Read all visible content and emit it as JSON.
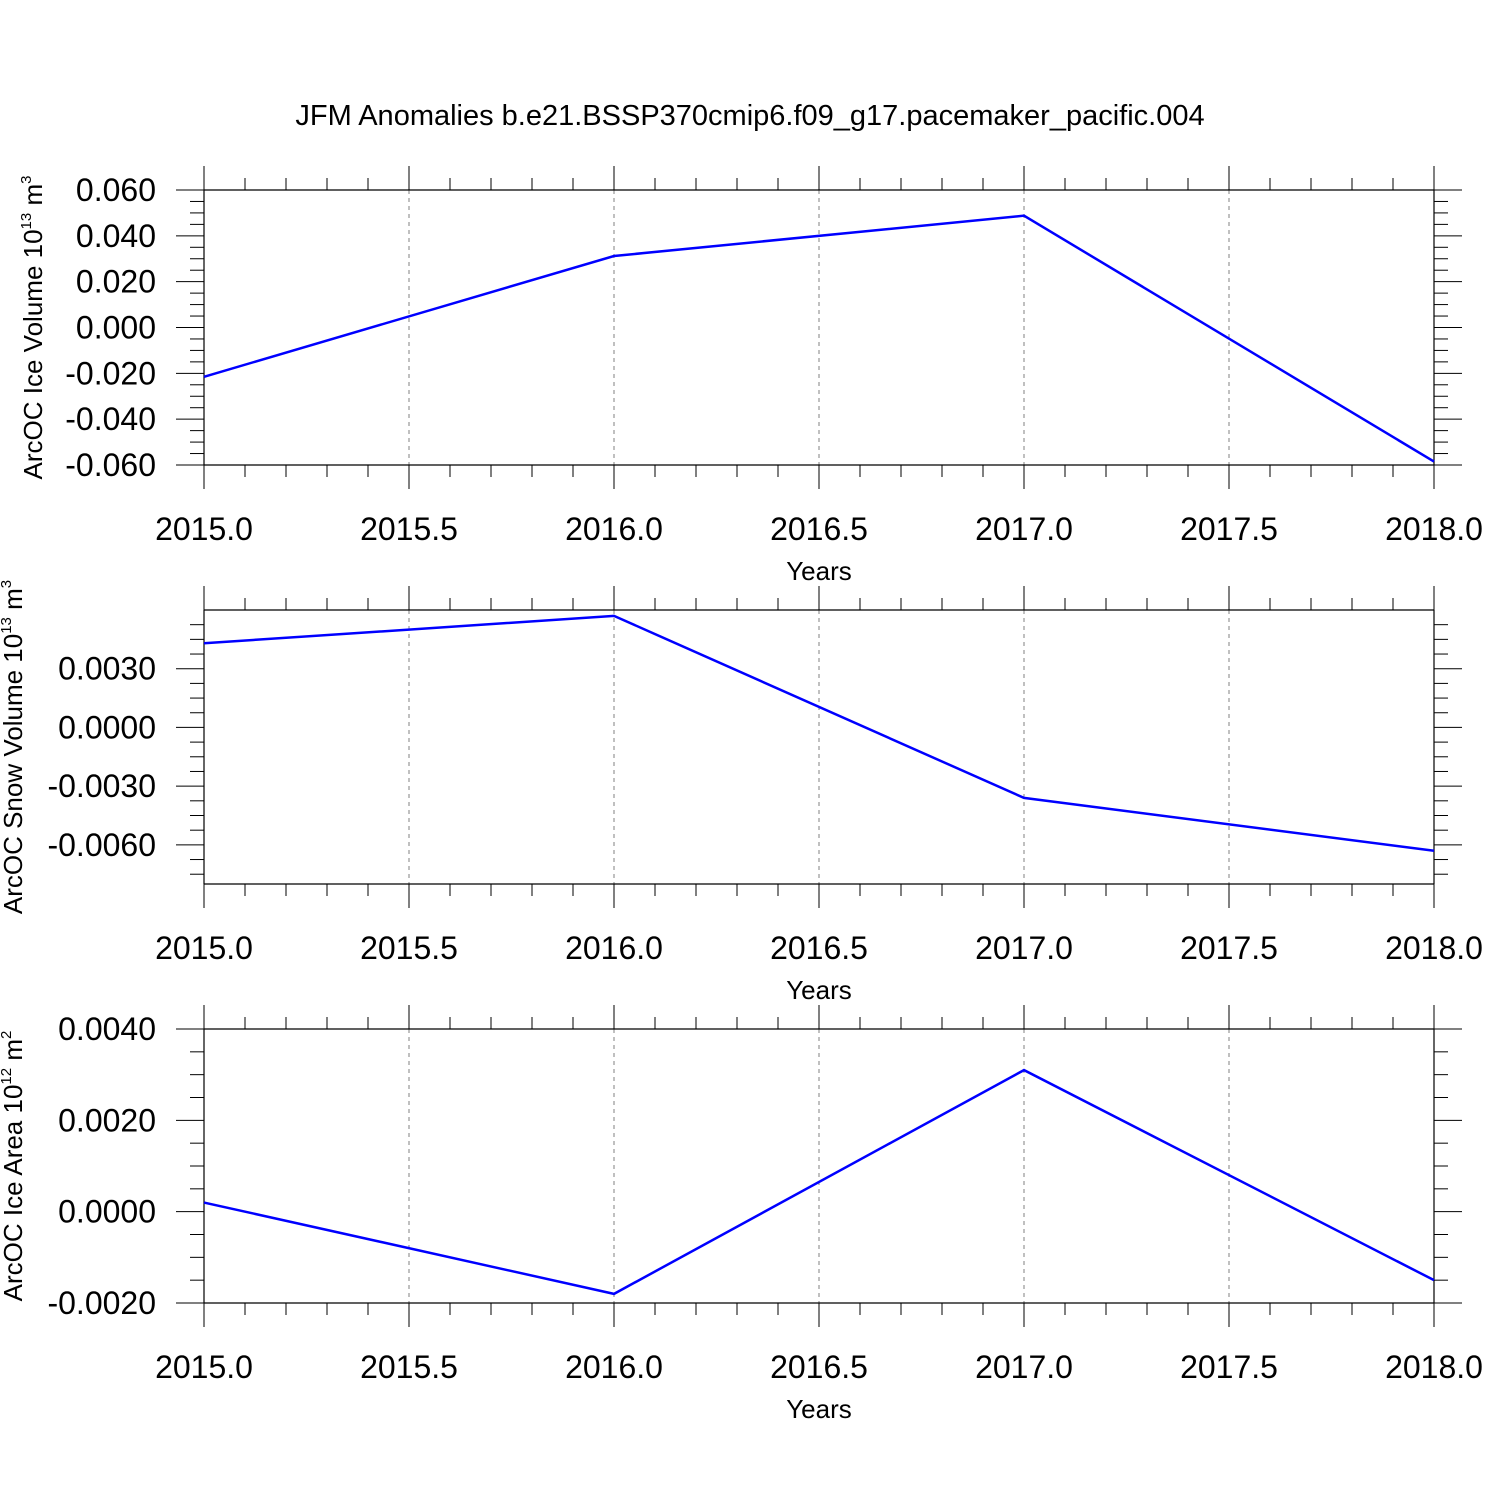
{
  "title": "JFM Anomalies b.e21.BSSP370cmip6.f09_g17.pacemaker_pacific.004",
  "colors": {
    "line": "#0000ff",
    "axis": "#000000",
    "grid": "#808080"
  },
  "chart_data": [
    {
      "type": "line",
      "xlabel": "Years",
      "ylabel": {
        "main": "ArcOC Ice Volume 10",
        "exp": "13",
        "unit": " m",
        "unit_exp": "3"
      },
      "xlim": [
        2015.0,
        2018.0
      ],
      "ylim": [
        -0.06,
        0.06
      ],
      "x_ticks": [
        "2015.0",
        "2015.5",
        "2016.0",
        "2016.5",
        "2017.0",
        "2017.5",
        "2018.0"
      ],
      "y_ticks": [
        "-0.060",
        "-0.040",
        "-0.020",
        "0.000",
        "0.020",
        "0.040",
        "0.060"
      ],
      "grid": "vertical dashed",
      "x": [
        2015,
        2016,
        2017,
        2018
      ],
      "y": [
        -0.0215,
        0.0312,
        0.0488,
        -0.0585
      ]
    },
    {
      "type": "line",
      "xlabel": "Years",
      "ylabel": {
        "main": "ArcOC Snow Volume 10",
        "exp": "13",
        "unit": " m",
        "unit_exp": "3"
      },
      "xlim": [
        2015.0,
        2018.0
      ],
      "ylim": [
        -0.008,
        0.006
      ],
      "x_ticks": [
        "2015.0",
        "2015.5",
        "2016.0",
        "2016.5",
        "2017.0",
        "2017.5",
        "2018.0"
      ],
      "y_ticks": [
        "-0.0060",
        "-0.0030",
        "0.0000",
        "0.0030"
      ],
      "grid": "vertical dashed",
      "x": [
        2015,
        2016,
        2017,
        2018
      ],
      "y": [
        0.0043,
        0.0057,
        -0.0036,
        -0.0063
      ]
    },
    {
      "type": "line",
      "xlabel": "Years",
      "ylabel": {
        "main": "ArcOC Ice Area 10",
        "exp": "12",
        "unit": " m",
        "unit_exp": "2"
      },
      "xlim": [
        2015.0,
        2018.0
      ],
      "ylim": [
        -0.002,
        0.004
      ],
      "x_ticks": [
        "2015.0",
        "2015.5",
        "2016.0",
        "2016.5",
        "2017.0",
        "2017.5",
        "2018.0"
      ],
      "y_ticks": [
        "-0.0020",
        "0.0000",
        "0.0020",
        "0.0040"
      ],
      "grid": "vertical dashed",
      "x": [
        2015,
        2016,
        2017,
        2018
      ],
      "y": [
        0.0002,
        -0.0018,
        0.0031,
        -0.0015
      ]
    }
  ]
}
